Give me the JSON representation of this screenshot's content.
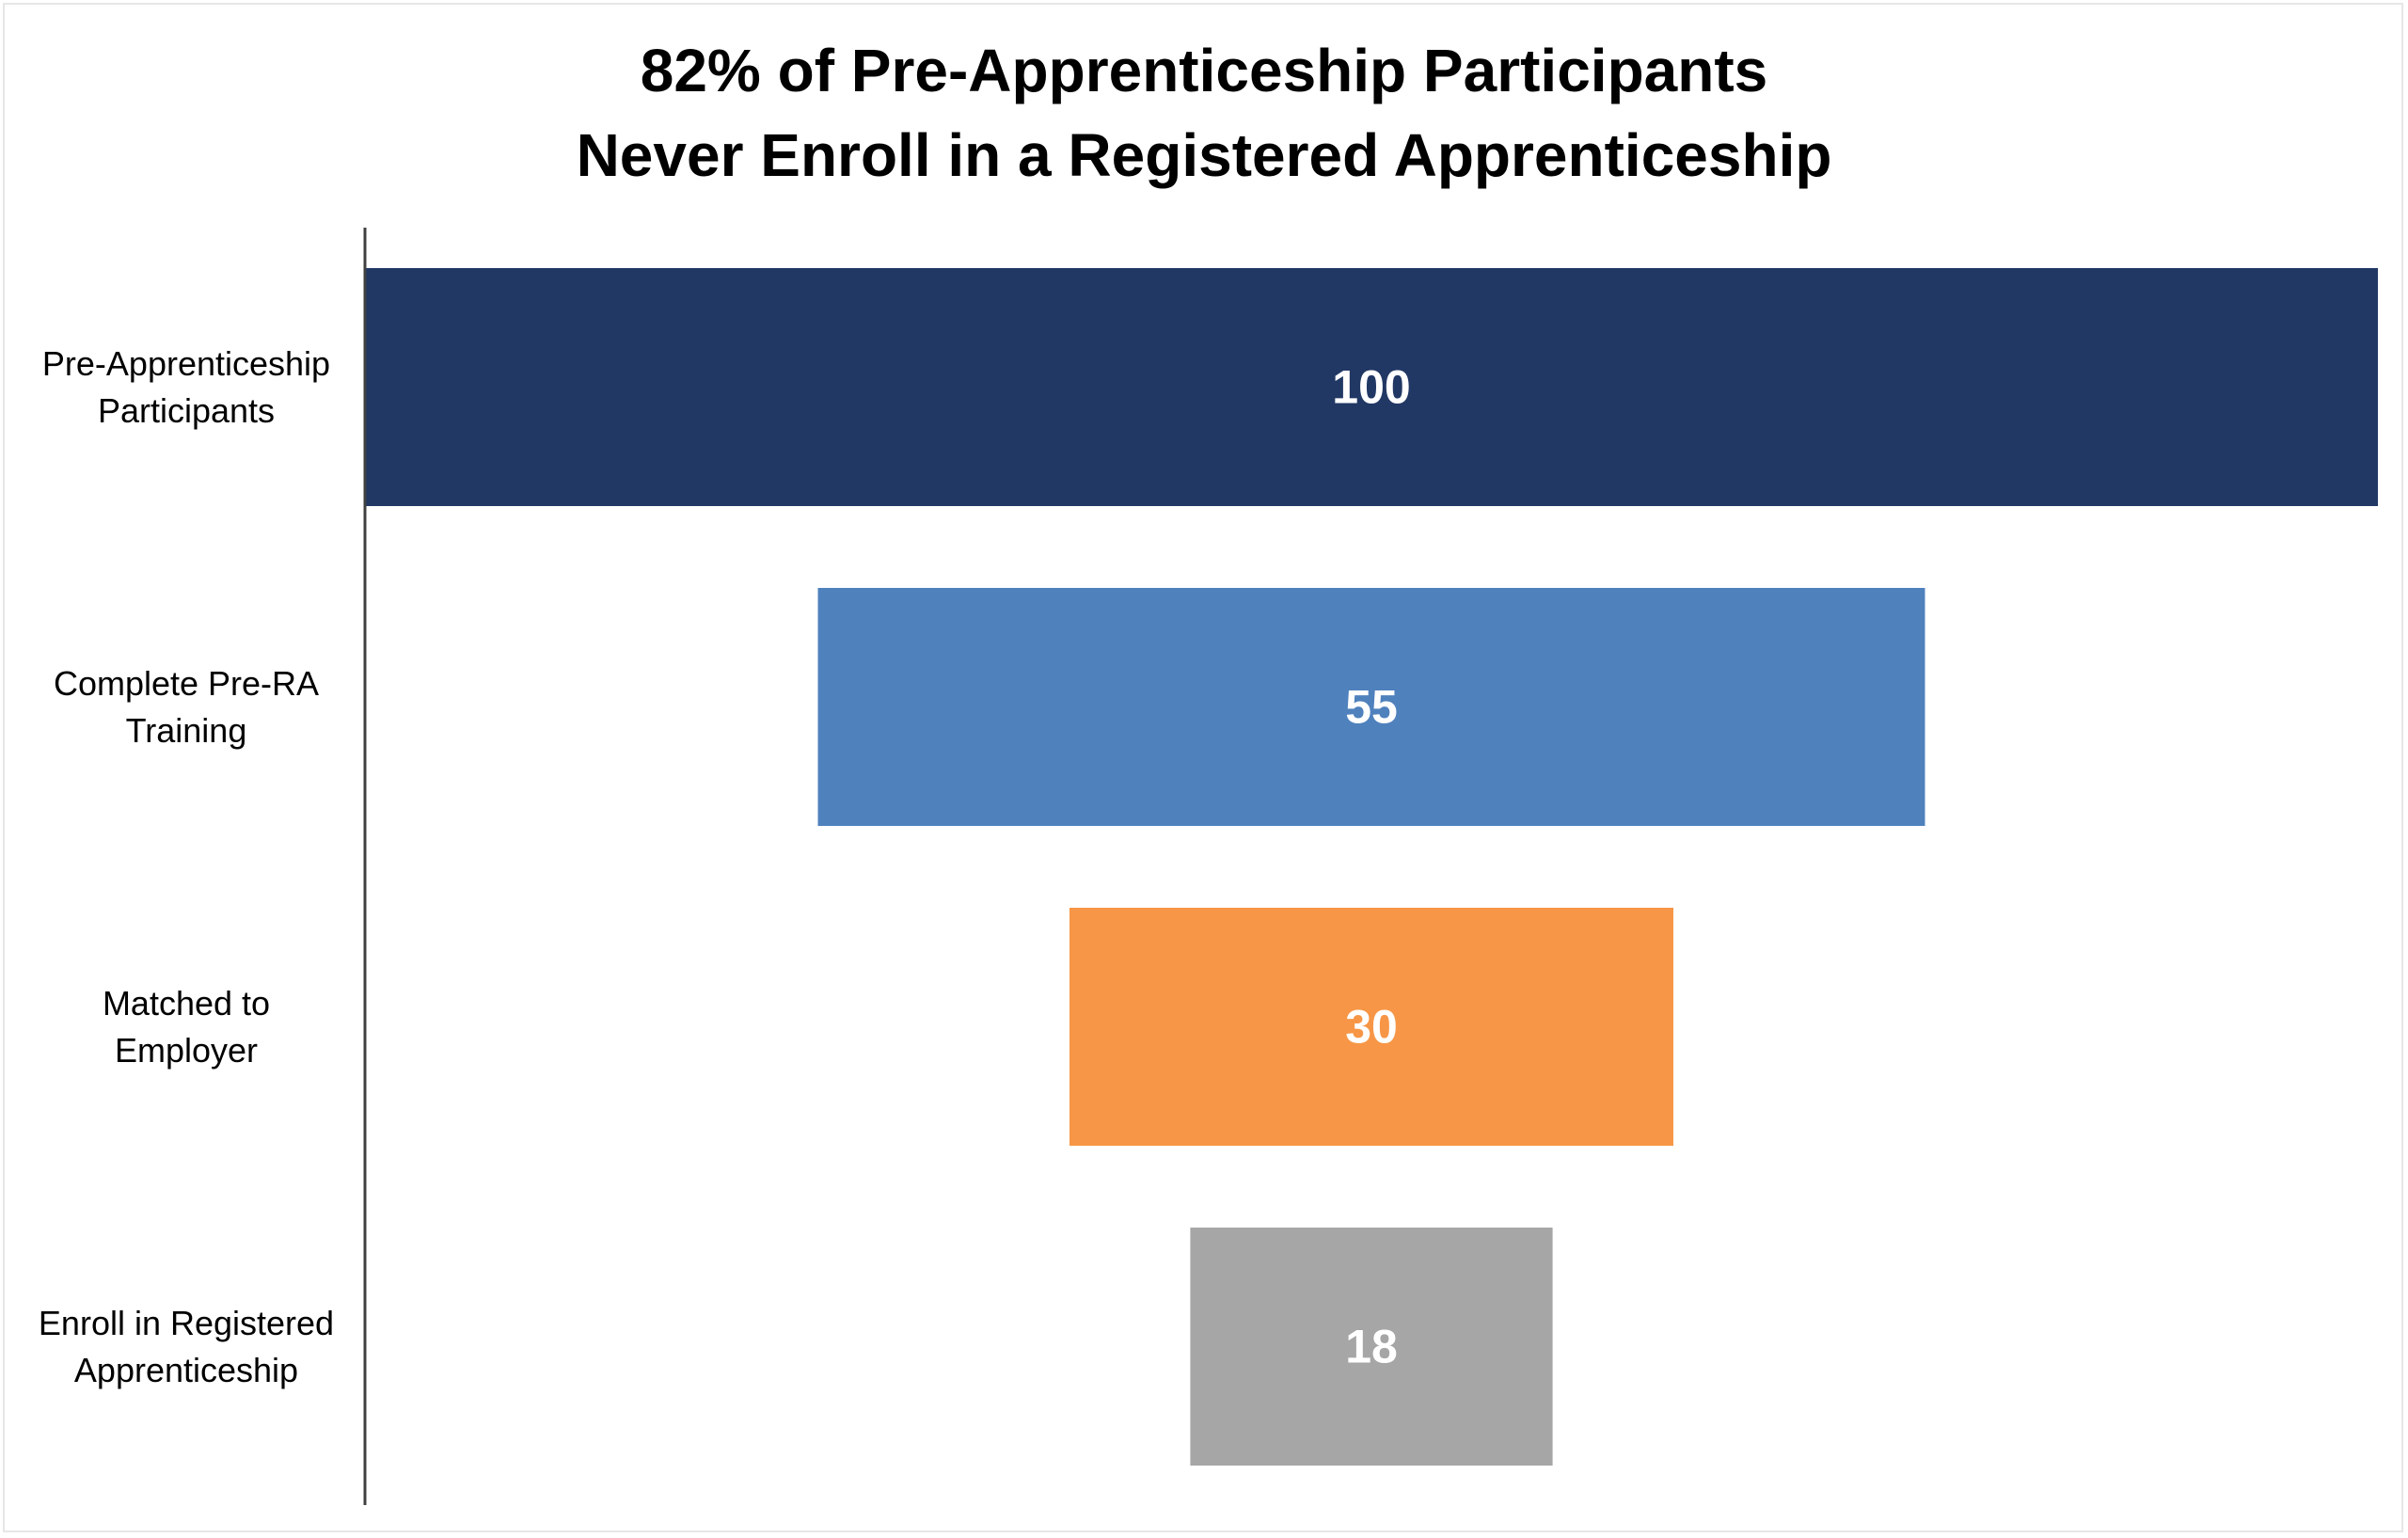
{
  "chart_data": {
    "type": "bar",
    "subtype": "funnel",
    "orientation": "horizontal",
    "title_lines": [
      "82% of Pre-Apprenticeship Participants",
      "Never Enroll in a Registered Apprenticeship"
    ],
    "categories": [
      [
        "Pre-Apprenticeship",
        "Participants"
      ],
      [
        "Complete Pre-RA",
        "Training"
      ],
      [
        "Matched to",
        "Employer"
      ],
      [
        "Enroll in Registered",
        "Apprenticeship"
      ]
    ],
    "values": [
      100,
      55,
      30,
      18
    ],
    "colors": [
      "#213864",
      "#4f81bd",
      "#f79646",
      "#a6a6a6"
    ],
    "value_label_color": "#ffffff",
    "xlim": [
      0,
      100
    ],
    "grid": false,
    "legend": "none"
  }
}
